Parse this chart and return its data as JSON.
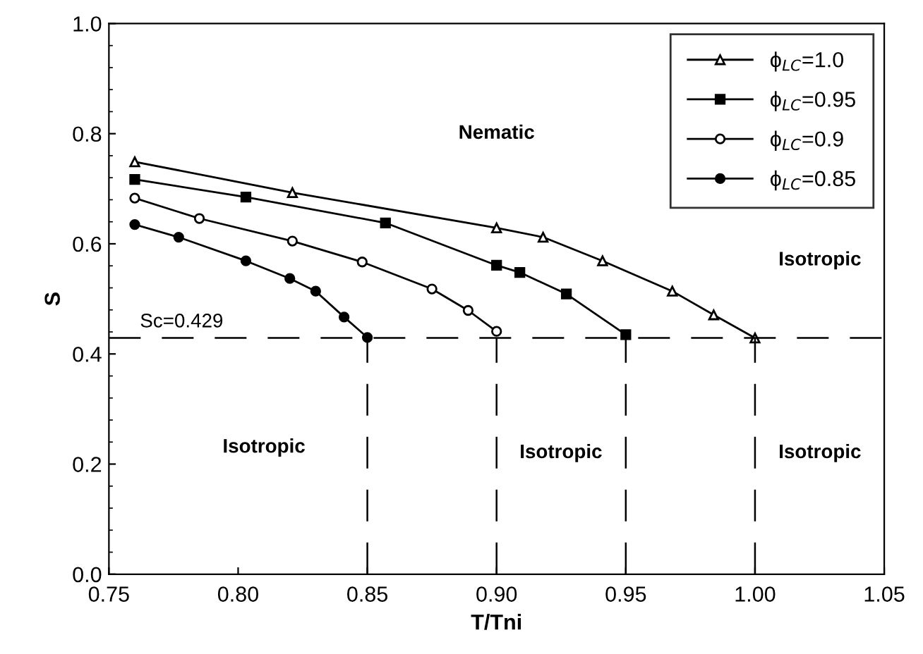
{
  "chart_data": {
    "type": "line",
    "xlabel": "T/Tni",
    "ylabel": "S",
    "xlim": [
      0.75,
      1.05
    ],
    "ylim": [
      0.0,
      1.0
    ],
    "xticks": [
      0.75,
      {
        "value": 0.8,
        "label": "0.80"
      },
      0.85,
      {
        "value": 0.9,
        "label": "0.90"
      },
      0.95,
      {
        "value": 1.0,
        "label": "1.00"
      },
      1.05
    ],
    "yticks": [
      {
        "value": 0.0,
        "label": "0.0"
      },
      0.2,
      0.4,
      0.6,
      0.8,
      {
        "value": 1.0,
        "label": "1.0"
      }
    ],
    "legend": "top right",
    "grid": false,
    "line_style": "solid",
    "series": [
      {
        "name": "ϕ$_{LC}$=1.0",
        "color": "#000000",
        "marker": "triangle",
        "x": [
          0.76,
          0.821,
          0.9,
          0.918,
          0.941,
          0.968,
          0.984,
          1.0
        ],
        "values": [
          0.749,
          0.693,
          0.629,
          0.612,
          0.569,
          0.514,
          0.471,
          0.429
        ]
      },
      {
        "name": "ϕ$_{LC}$=0.95",
        "color": "#000000",
        "marker": "square",
        "x": [
          0.76,
          0.803,
          0.857,
          0.9,
          0.909,
          0.927,
          0.95
        ],
        "values": [
          0.717,
          0.685,
          0.638,
          0.561,
          0.548,
          0.509,
          0.435
        ]
      },
      {
        "name": "ϕ$_{LC}$=0.9",
        "color": "#000000",
        "marker": "circle",
        "x": [
          0.76,
          0.785,
          0.821,
          0.848,
          0.875,
          0.889,
          0.9
        ],
        "values": [
          0.683,
          0.646,
          0.605,
          0.567,
          0.518,
          0.479,
          0.441
        ]
      },
      {
        "name": "ϕ$_{LC}$=0.85",
        "color": "#000000",
        "marker": "circle",
        "x": [
          0.76,
          0.777,
          0.803,
          0.82,
          0.83,
          0.841,
          0.85
        ],
        "values": [
          0.635,
          0.612,
          0.569,
          0.537,
          0.514,
          0.467,
          0.43
        ]
      }
    ],
    "ref_lines": [
      {
        "axis": "y",
        "value": 0.429,
        "label": "Sc=0.429",
        "color": "#000000",
        "line_style": "dashed"
      },
      {
        "axis": "x",
        "value": 0.85,
        "color": "#000000",
        "line_style": "dashed"
      },
      {
        "axis": "x",
        "value": 0.9,
        "color": "#000000",
        "line_style": "dashed"
      },
      {
        "axis": "x",
        "value": 0.95,
        "color": "#000000",
        "line_style": "dashed"
      },
      {
        "axis": "x",
        "value": 1.0,
        "color": "#000000",
        "line_style": "dashed"
      }
    ],
    "annotations": [
      "Nematic",
      "Isotropic",
      "Isotropic",
      "Isotropic",
      "Isotropic"
    ]
  }
}
